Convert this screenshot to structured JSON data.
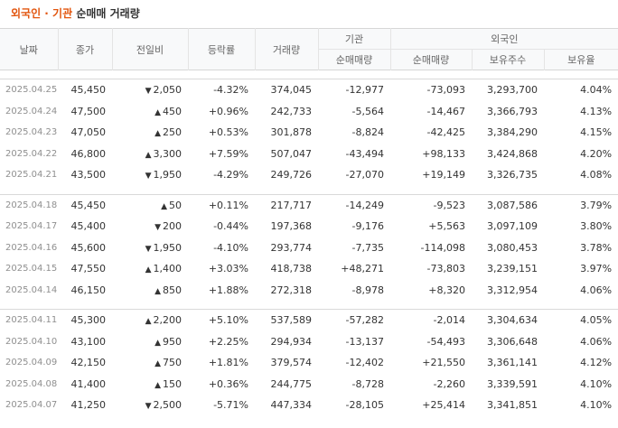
{
  "title": {
    "accent": "외국인 · 기관",
    "rest": "순매매 거래량"
  },
  "header": {
    "date": "날짜",
    "close": "종가",
    "change": "전일비",
    "rate": "등락률",
    "volume": "거래량",
    "inst_group": "기관",
    "inst_net": "순매매량",
    "foreign_group": "외국인",
    "foreign_net": "순매매량",
    "foreign_hold": "보유주수",
    "foreign_ratio": "보유율"
  },
  "colors": {
    "up": "#e21a1a",
    "down": "#1a5fd6",
    "title_accent": "#e2560f"
  },
  "icons": {
    "up": "caret-up-icon",
    "down": "caret-down-icon"
  },
  "rows": [
    {
      "date": "2025.04.25",
      "close": "45,450",
      "dir": "down",
      "change": "2,050",
      "rate": "-4.32%",
      "volume": "374,045",
      "inst": "-12,977",
      "foreign": "-73,093",
      "hold": "3,293,700",
      "ratio": "4.04%"
    },
    {
      "date": "2025.04.24",
      "close": "47,500",
      "dir": "up",
      "change": "450",
      "rate": "+0.96%",
      "volume": "242,733",
      "inst": "-5,564",
      "foreign": "-14,467",
      "hold": "3,366,793",
      "ratio": "4.13%"
    },
    {
      "date": "2025.04.23",
      "close": "47,050",
      "dir": "up",
      "change": "250",
      "rate": "+0.53%",
      "volume": "301,878",
      "inst": "-8,824",
      "foreign": "-42,425",
      "hold": "3,384,290",
      "ratio": "4.15%"
    },
    {
      "date": "2025.04.22",
      "close": "46,800",
      "dir": "up",
      "change": "3,300",
      "rate": "+7.59%",
      "volume": "507,047",
      "inst": "-43,494",
      "foreign": "+98,133",
      "hold": "3,424,868",
      "ratio": "4.20%"
    },
    {
      "date": "2025.04.21",
      "close": "43,500",
      "dir": "down",
      "change": "1,950",
      "rate": "-4.29%",
      "volume": "249,726",
      "inst": "-27,070",
      "foreign": "+19,149",
      "hold": "3,326,735",
      "ratio": "4.08%"
    },
    {
      "date": "2025.04.18",
      "close": "45,450",
      "dir": "up",
      "change": "50",
      "rate": "+0.11%",
      "volume": "217,717",
      "inst": "-14,249",
      "foreign": "-9,523",
      "hold": "3,087,586",
      "ratio": "3.79%"
    },
    {
      "date": "2025.04.17",
      "close": "45,400",
      "dir": "down",
      "change": "200",
      "rate": "-0.44%",
      "volume": "197,368",
      "inst": "-9,176",
      "foreign": "+5,563",
      "hold": "3,097,109",
      "ratio": "3.80%"
    },
    {
      "date": "2025.04.16",
      "close": "45,600",
      "dir": "down",
      "change": "1,950",
      "rate": "-4.10%",
      "volume": "293,774",
      "inst": "-7,735",
      "foreign": "-114,098",
      "hold": "3,080,453",
      "ratio": "3.78%"
    },
    {
      "date": "2025.04.15",
      "close": "47,550",
      "dir": "up",
      "change": "1,400",
      "rate": "+3.03%",
      "volume": "418,738",
      "inst": "+48,271",
      "foreign": "-73,803",
      "hold": "3,239,151",
      "ratio": "3.97%"
    },
    {
      "date": "2025.04.14",
      "close": "46,150",
      "dir": "up",
      "change": "850",
      "rate": "+1.88%",
      "volume": "272,318",
      "inst": "-8,978",
      "foreign": "+8,320",
      "hold": "3,312,954",
      "ratio": "4.06%"
    },
    {
      "date": "2025.04.11",
      "close": "45,300",
      "dir": "up",
      "change": "2,200",
      "rate": "+5.10%",
      "volume": "537,589",
      "inst": "-57,282",
      "foreign": "-2,014",
      "hold": "3,304,634",
      "ratio": "4.05%"
    },
    {
      "date": "2025.04.10",
      "close": "43,100",
      "dir": "up",
      "change": "950",
      "rate": "+2.25%",
      "volume": "294,934",
      "inst": "-13,137",
      "foreign": "-54,493",
      "hold": "3,306,648",
      "ratio": "4.06%"
    },
    {
      "date": "2025.04.09",
      "close": "42,150",
      "dir": "up",
      "change": "750",
      "rate": "+1.81%",
      "volume": "379,574",
      "inst": "-12,402",
      "foreign": "+21,550",
      "hold": "3,361,141",
      "ratio": "4.12%"
    },
    {
      "date": "2025.04.08",
      "close": "41,400",
      "dir": "up",
      "change": "150",
      "rate": "+0.36%",
      "volume": "244,775",
      "inst": "-8,728",
      "foreign": "-2,260",
      "hold": "3,339,591",
      "ratio": "4.10%"
    },
    {
      "date": "2025.04.07",
      "close": "41,250",
      "dir": "down",
      "change": "2,500",
      "rate": "-5.71%",
      "volume": "447,334",
      "inst": "-28,105",
      "foreign": "+25,414",
      "hold": "3,341,851",
      "ratio": "4.10%"
    }
  ]
}
